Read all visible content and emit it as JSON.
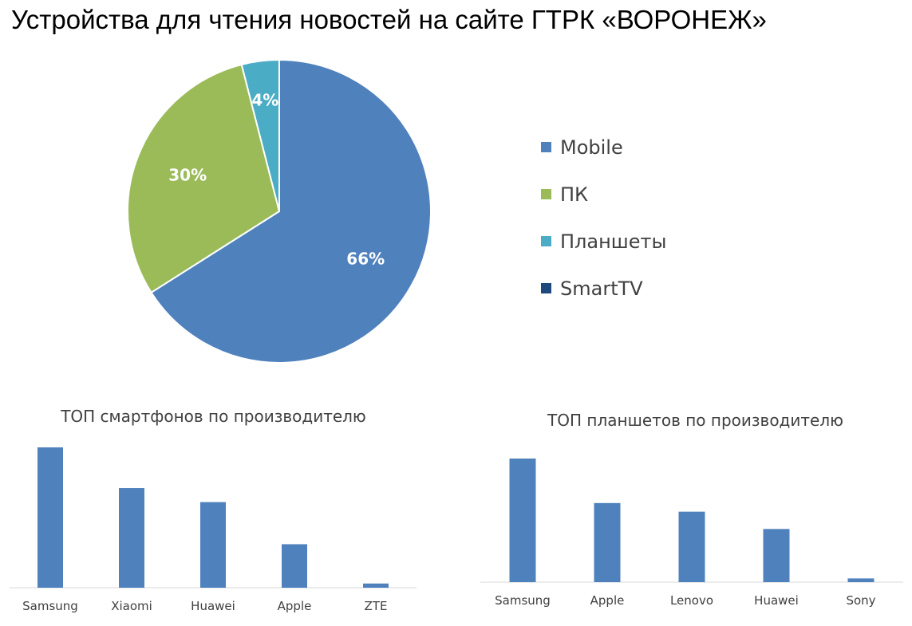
{
  "page_title": "Устройства для чтения новостей на сайте ГТРК «ВОРОНЕЖ»",
  "colors": {
    "blue": "#4f81bd",
    "green": "#9bbb59",
    "teal": "#4bacc6",
    "navy": "#1f497d",
    "axis": "#d9d9d9",
    "text": "#404040"
  },
  "chart_data": [
    {
      "type": "pie",
      "title": "",
      "slices": [
        {
          "label": "Mobile",
          "value": 66,
          "display": "66%",
          "color": "#4f81bd"
        },
        {
          "label": "ПК",
          "value": 30,
          "display": "30%",
          "color": "#9bbb59"
        },
        {
          "label": "Планшеты",
          "value": 4,
          "display": "4%",
          "color": "#4bacc6"
        },
        {
          "label": "SmartTV",
          "value": 0,
          "display": "",
          "color": "#1f497d"
        }
      ],
      "legend_position": "right"
    },
    {
      "type": "bar",
      "title": "ТОП смартфонов по производителю",
      "categories": [
        "Samsung",
        "Xiaomi",
        "Huawei",
        "Apple",
        "ZTE"
      ],
      "values": [
        100,
        71,
        61,
        31,
        3
      ],
      "ylim": [
        0,
        100
      ],
      "color": "#4f81bd"
    },
    {
      "type": "bar",
      "title": "ТОП планшетов по производителю",
      "categories": [
        "Samsung",
        "Apple",
        "Lenovo",
        "Huawei",
        "Sony"
      ],
      "values": [
        100,
        64,
        57,
        43,
        3
      ],
      "ylim": [
        0,
        100
      ],
      "color": "#4f81bd"
    }
  ]
}
